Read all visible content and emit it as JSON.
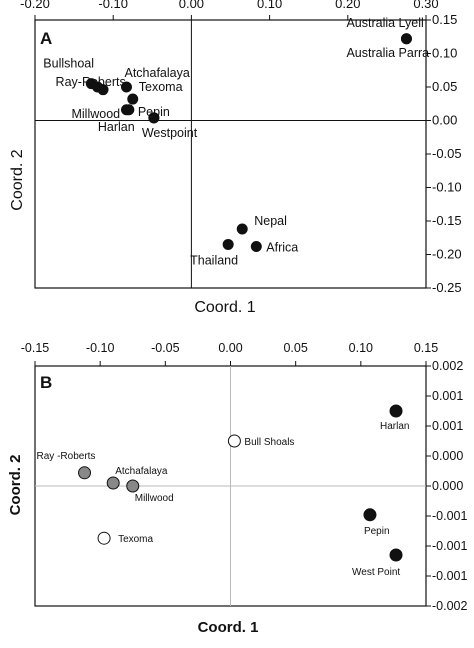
{
  "chart_data": [
    {
      "type": "scatter",
      "panel_label": "A",
      "xlabel": "Coord. 1",
      "ylabel": "Coord. 2",
      "xlim": [
        -0.2,
        0.3
      ],
      "ylim": [
        -0.25,
        0.15
      ],
      "x_ticks": [
        -0.2,
        -0.1,
        0.0,
        0.1,
        0.2,
        0.3
      ],
      "x_tick_labels": [
        "-0.20",
        "-0.10",
        "0.00",
        "0.10",
        "0.20",
        "0.30"
      ],
      "y_ticks": [
        0.15,
        0.1,
        0.05,
        0.0,
        -0.05,
        -0.1,
        -0.15,
        -0.2,
        -0.25
      ],
      "y_tick_labels": [
        "0.15",
        "0.10",
        "0.05",
        "0.00",
        "-0.05",
        "-0.10",
        "-0.15",
        "-0.20",
        "-0.25"
      ],
      "x_axis_position": "top",
      "y_axis_position": "right",
      "grid": false,
      "points": [
        {
          "x": 0.275,
          "y": 0.122,
          "color": "#111111",
          "label": "Australia Lyell"
        },
        {
          "x": 0.275,
          "y": 0.122,
          "color": "#111111",
          "label": "Australia Parra"
        },
        {
          "x": -0.128,
          "y": 0.055,
          "color": "#111111",
          "label": "Bullshoal"
        },
        {
          "x": -0.12,
          "y": 0.05,
          "color": "#111111",
          "label": "Ray-Roberts"
        },
        {
          "x": -0.113,
          "y": 0.046,
          "color": "#111111",
          "label": ""
        },
        {
          "x": -0.083,
          "y": 0.05,
          "color": "#111111",
          "label": "Atchafalaya"
        },
        {
          "x": -0.075,
          "y": 0.032,
          "color": "#111111",
          "label": "Texoma"
        },
        {
          "x": -0.08,
          "y": 0.016,
          "color": "#111111",
          "label": "Pepin"
        },
        {
          "x": -0.083,
          "y": 0.016,
          "color": "#111111",
          "label": "Millwood"
        },
        {
          "x": -0.048,
          "y": 0.004,
          "color": "#111111",
          "label": "Harlan"
        },
        {
          "x": -0.048,
          "y": 0.004,
          "color": "#111111",
          "label": "Westpoint"
        },
        {
          "x": 0.065,
          "y": -0.162,
          "color": "#111111",
          "label": "Nepal"
        },
        {
          "x": 0.083,
          "y": -0.188,
          "color": "#111111",
          "label": "Africa"
        },
        {
          "x": 0.047,
          "y": -0.185,
          "color": "#111111",
          "label": "Thailand"
        }
      ]
    },
    {
      "type": "scatter",
      "panel_label": "B",
      "xlabel": "Coord. 1",
      "ylabel": "Coord. 2",
      "xlim": [
        -0.15,
        0.15
      ],
      "ylim": [
        -0.002,
        0.002
      ],
      "x_ticks": [
        -0.15,
        -0.1,
        -0.05,
        0.0,
        0.05,
        0.1,
        0.15
      ],
      "x_tick_labels": [
        "-0.15",
        "-0.10",
        "-0.05",
        "0.00",
        "0.05",
        "0.10",
        "0.15"
      ],
      "y_ticks": [
        0.002,
        0.0015,
        0.001,
        0.0005,
        0.0,
        -0.0005,
        -0.001,
        -0.0015,
        -0.002
      ],
      "y_tick_labels": [
        "0.002",
        "0.001",
        "0.001",
        "0.000",
        "0.000",
        "-0.001",
        "-0.001",
        "-0.001",
        "-0.002"
      ],
      "x_axis_position": "top",
      "y_axis_position": "right",
      "grid": false,
      "points": [
        {
          "x": 0.127,
          "y": 0.00125,
          "color": "#111111",
          "label": "Harlan"
        },
        {
          "x": 0.003,
          "y": 0.00075,
          "color": "#ffffff",
          "label": "Bull Shoals"
        },
        {
          "x": -0.112,
          "y": 0.00022,
          "color": "#888888",
          "label": "Ray -Roberts"
        },
        {
          "x": -0.09,
          "y": 5e-05,
          "color": "#888888",
          "label": "Atchafalaya"
        },
        {
          "x": -0.075,
          "y": 0.0,
          "color": "#888888",
          "label": "Millwood"
        },
        {
          "x": 0.107,
          "y": -0.00048,
          "color": "#111111",
          "label": "Pepin"
        },
        {
          "x": -0.097,
          "y": -0.00087,
          "color": "#ffffff",
          "label": "Texoma"
        },
        {
          "x": 0.127,
          "y": -0.00115,
          "color": "#111111",
          "label": "West Point"
        }
      ]
    }
  ]
}
